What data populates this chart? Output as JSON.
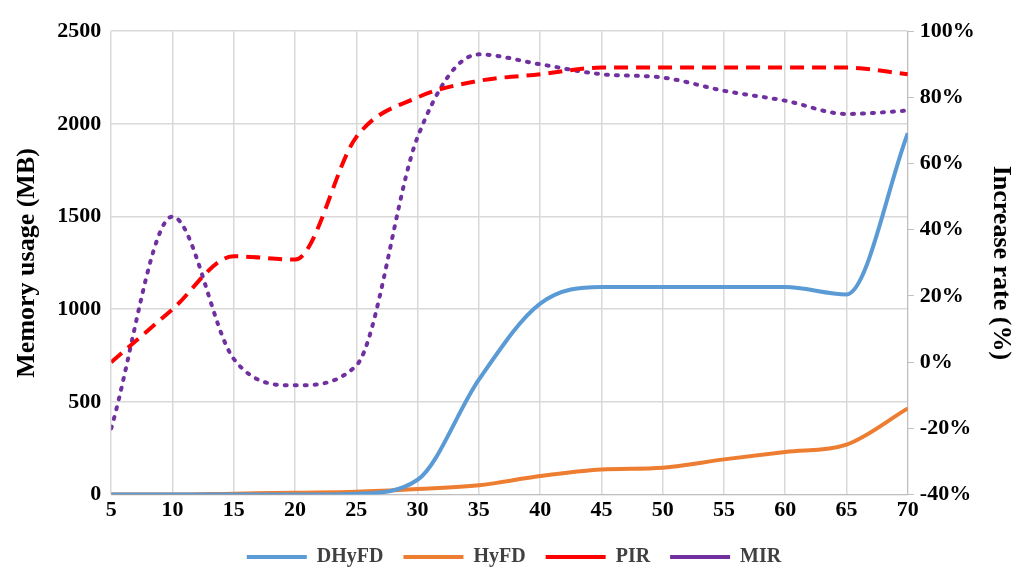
{
  "chart_data": {
    "type": "line",
    "x": [
      5,
      10,
      15,
      20,
      25,
      30,
      35,
      40,
      45,
      50,
      55,
      60,
      65,
      70
    ],
    "xlim": [
      5,
      70
    ],
    "xticks": [
      5,
      10,
      15,
      20,
      25,
      30,
      35,
      40,
      45,
      50,
      55,
      60,
      65,
      70
    ],
    "ylim": [
      0,
      2500
    ],
    "yticks": [
      0,
      500,
      1000,
      1500,
      2000,
      2500
    ],
    "y2lim": [
      -40,
      100
    ],
    "y2ticks": [
      {
        "value": -40,
        "label": "-40%"
      },
      {
        "value": -20,
        "label": "-20%"
      },
      {
        "value": 0,
        "label": "0%"
      },
      {
        "value": 20,
        "label": "20%"
      },
      {
        "value": 40,
        "label": "40%"
      },
      {
        "value": 60,
        "label": "60%"
      },
      {
        "value": 80,
        "label": "80%"
      },
      {
        "value": 100,
        "label": "100%"
      }
    ],
    "ylabel": "Memory usage (MB)",
    "y2label": "Increase rate (%)",
    "grid": true,
    "legend": "bottom",
    "marker": "none",
    "series": [
      {
        "name": "DHyFD",
        "color": "#5b9bd5",
        "line_style": "solid",
        "values": [
          0,
          0,
          0,
          0,
          5,
          80,
          620,
          1030,
          1120,
          1120,
          1120,
          1120,
          1080,
          1950
        ]
      },
      {
        "name": "HyFD",
        "color": "#ed7d31",
        "line_style": "solid",
        "values": [
          0,
          0,
          5,
          10,
          15,
          30,
          50,
          100,
          135,
          145,
          190,
          230,
          270,
          465
        ]
      },
      {
        "name": "PIR",
        "color": "#ff0000",
        "line_style": "dashed",
        "axis": "y2",
        "values": [
          0,
          16,
          32,
          31,
          68,
          80,
          85,
          87,
          89,
          89,
          89,
          89,
          89,
          87
        ]
      },
      {
        "name": "MIR",
        "color": "#7030a0",
        "line_style": "dotted",
        "axis": "y2",
        "values": [
          -20,
          44,
          1,
          -7,
          -1,
          68,
          93,
          90,
          87,
          86,
          82,
          79,
          75,
          76
        ]
      }
    ]
  }
}
